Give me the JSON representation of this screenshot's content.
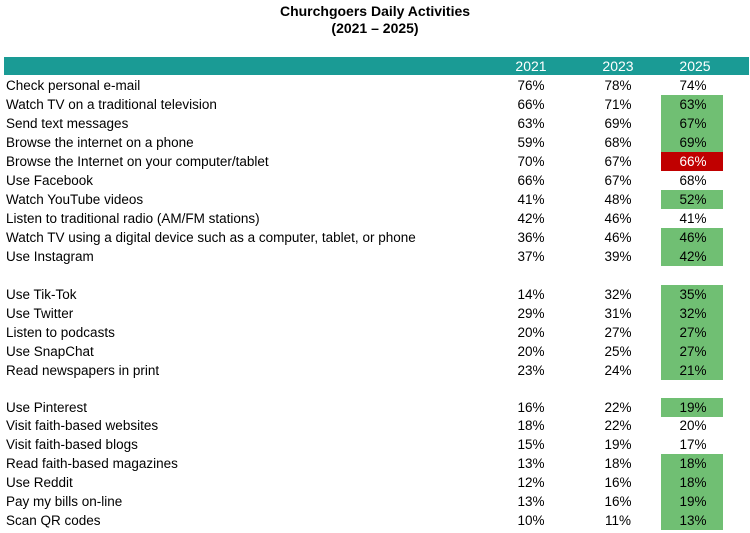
{
  "chart_data": {
    "type": "table",
    "title": "Churchgoers  Daily Activities",
    "subtitle": "(2021 – 2025)",
    "columns": [
      "",
      "2021",
      "2023",
      "2025"
    ],
    "highlight_colors": {
      "up": "#70bf73",
      "down": "#c00000"
    },
    "rows": [
      {
        "label": "Check personal e-mail",
        "values": [
          "76%",
          "78%",
          "74%"
        ],
        "highlight": null
      },
      {
        "label": "Watch TV on a traditional television",
        "values": [
          "66%",
          "71%",
          "63%"
        ],
        "highlight": "up"
      },
      {
        "label": "Send text messages",
        "values": [
          "63%",
          "69%",
          "67%"
        ],
        "highlight": "up"
      },
      {
        "label": "Browse the internet on a phone",
        "values": [
          "59%",
          "68%",
          "69%"
        ],
        "highlight": "up"
      },
      {
        "label": "Browse the Internet on your computer/tablet",
        "values": [
          "70%",
          "67%",
          "66%"
        ],
        "highlight": "down"
      },
      {
        "label": "Use Facebook",
        "values": [
          "66%",
          "67%",
          "68%"
        ],
        "highlight": null
      },
      {
        "label": "Watch YouTube videos",
        "values": [
          "41%",
          "48%",
          "52%"
        ],
        "highlight": "up"
      },
      {
        "label": "Listen to traditional radio (AM/FM stations)",
        "values": [
          "42%",
          "46%",
          "41%"
        ],
        "highlight": null
      },
      {
        "label": "Watch TV using a digital device such as a computer, tablet, or phone",
        "values": [
          "36%",
          "46%",
          "46%"
        ],
        "highlight": "up"
      },
      {
        "label": "Use Instagram",
        "values": [
          "37%",
          "39%",
          "42%"
        ],
        "highlight": "up"
      },
      {
        "label": "Use Tik-Tok",
        "values": [
          "14%",
          "32%",
          "35%"
        ],
        "highlight": "up"
      },
      {
        "label": "Use Twitter",
        "values": [
          "29%",
          "31%",
          "32%"
        ],
        "highlight": "up"
      },
      {
        "label": "Listen to podcasts",
        "values": [
          "20%",
          "27%",
          "27%"
        ],
        "highlight": "up"
      },
      {
        "label": "Use SnapChat",
        "values": [
          "20%",
          "25%",
          "27%"
        ],
        "highlight": "up"
      },
      {
        "label": "Read newspapers in print",
        "values": [
          "23%",
          "24%",
          "21%"
        ],
        "highlight": "up"
      },
      {
        "label": "Use Pinterest",
        "values": [
          "16%",
          "22%",
          "19%"
        ],
        "highlight": "up"
      },
      {
        "label": "Visit faith-based websites",
        "values": [
          "18%",
          "22%",
          "20%"
        ],
        "highlight": null
      },
      {
        "label": "Visit faith-based blogs",
        "values": [
          "15%",
          "19%",
          "17%"
        ],
        "highlight": null
      },
      {
        "label": "Read faith-based magazines",
        "values": [
          "13%",
          "18%",
          "18%"
        ],
        "highlight": "up"
      },
      {
        "label": "Use Reddit",
        "values": [
          "12%",
          "16%",
          "18%"
        ],
        "highlight": "up"
      },
      {
        "label": "Pay my bills on-line",
        "values": [
          "13%",
          "16%",
          "19%"
        ],
        "highlight": "up"
      },
      {
        "label": "Scan QR codes",
        "values": [
          "10%",
          "11%",
          "13%"
        ],
        "highlight": "up"
      }
    ]
  }
}
